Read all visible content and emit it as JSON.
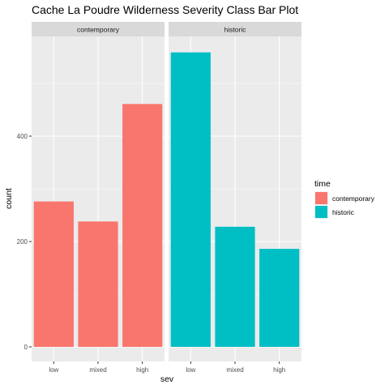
{
  "chart_data": {
    "type": "bar",
    "title": "Cache La Poudre Wilderness Severity Class Bar Plot",
    "xlabel": "sev",
    "ylabel": "count",
    "categories": [
      "low",
      "mixed",
      "high"
    ],
    "yticks": [
      0,
      200,
      400
    ],
    "ylim": [
      0,
      580
    ],
    "grid": true,
    "legend_position": "right",
    "facets": [
      {
        "name": "contemporary",
        "series": "contemporary",
        "values": [
          276,
          238,
          461
        ]
      },
      {
        "name": "historic",
        "series": "historic",
        "values": [
          559,
          228,
          186
        ]
      }
    ],
    "legend": {
      "title": "time",
      "items": [
        {
          "label": "contemporary",
          "color": "#F8766D"
        },
        {
          "label": "historic",
          "color": "#00BFC4"
        }
      ]
    }
  }
}
